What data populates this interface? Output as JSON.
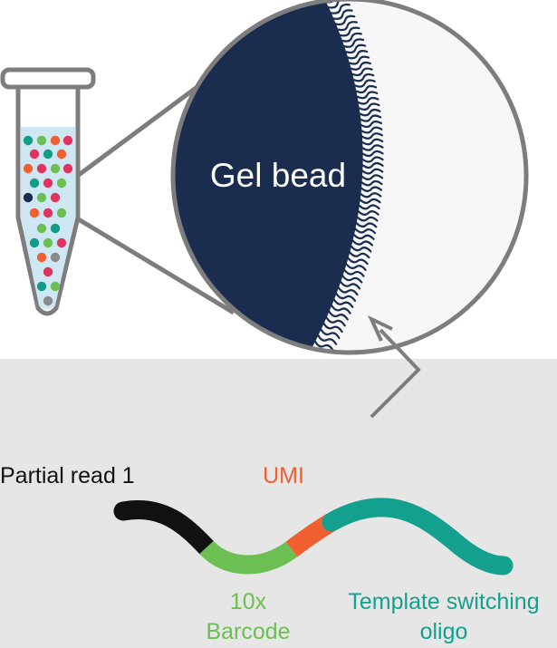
{
  "labels": {
    "gel_bead": "Gel bead",
    "partial_read": "Partial read 1",
    "umi": "UMI",
    "barcode_line1": "10x",
    "barcode_line2": "Barcode",
    "tso_line1": "Template switching",
    "tso_line2": "oligo"
  },
  "colors": {
    "background": "#e6e6e6",
    "panel": "#ffffff",
    "bead": "#1b2d4f",
    "outline": "#7d7d7d",
    "read1": "#111111",
    "barcode": "#6cbf52",
    "umi": "#ef5f2f",
    "tso": "#13a08e",
    "bead_teal": "#129c8a",
    "bead_green": "#6cbf52",
    "bead_orange": "#ef5f2f",
    "bead_pink": "#e0335f",
    "bead_gray": "#8a8a8a",
    "bead_navy": "#1b2d4f"
  },
  "icons": {
    "tube": "microcentrifuge-tube-icon",
    "arrow": "pointer-arrow-icon"
  }
}
